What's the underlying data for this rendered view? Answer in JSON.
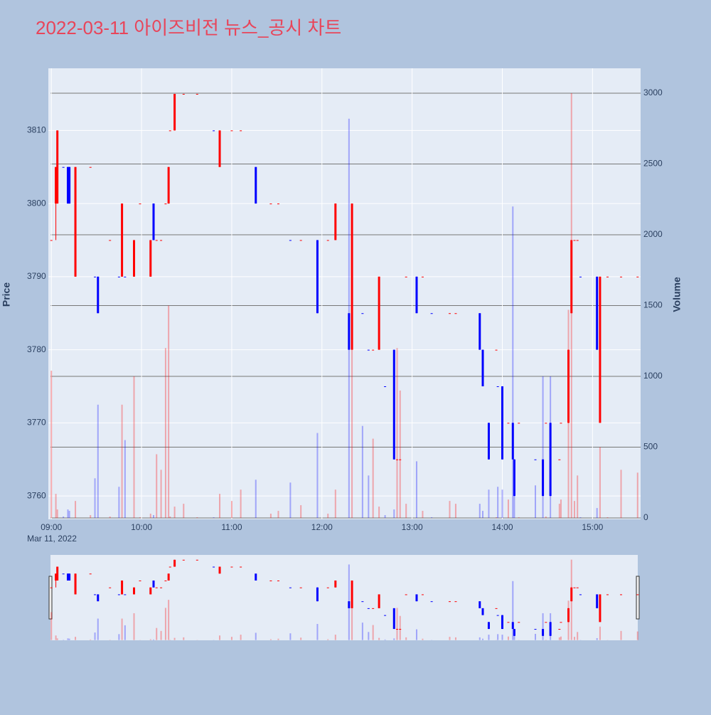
{
  "chart_data": {
    "type": "candlestick",
    "title": "2022-03-11 아이즈비전 뉴스_공시 차트",
    "ylabel": "Price",
    "y2label": "Volume",
    "x_date": "Mar 11, 2022",
    "increasing_color": "#ff0000",
    "decreasing_color": "#0000ff",
    "x": [
      "09:00",
      "09:03",
      "09:04",
      "09:08",
      "09:11",
      "09:12",
      "09:16",
      "09:26",
      "09:29",
      "09:31",
      "09:39",
      "09:45",
      "09:47",
      "09:49",
      "09:55",
      "09:59",
      "10:06",
      "10:08",
      "10:10",
      "10:13",
      "10:16",
      "10:18",
      "10:19",
      "10:22",
      "10:28",
      "10:37",
      "10:48",
      "10:52",
      "11:00",
      "11:06",
      "11:16",
      "11:26",
      "11:31",
      "11:39",
      "11:46",
      "11:57",
      "12:04",
      "12:09",
      "12:18",
      "12:20",
      "12:27",
      "12:31",
      "12:34",
      "12:38",
      "12:42",
      "12:48",
      "12:50",
      "12:52",
      "12:56",
      "13:03",
      "13:07",
      "13:13",
      "13:25",
      "13:29",
      "13:45",
      "13:47",
      "13:51",
      "13:56",
      "13:57",
      "14:00",
      "14:04",
      "14:07",
      "14:08",
      "14:11",
      "14:22",
      "14:27",
      "14:29",
      "14:32",
      "14:38",
      "14:39",
      "14:44",
      "14:46",
      "14:48",
      "14:50",
      "14:52",
      "15:03",
      "15:05",
      "15:10",
      "15:19",
      "15:30"
    ],
    "open": [
      3795,
      3800,
      3800,
      3805,
      3805,
      3805,
      3790,
      3805,
      3790,
      3790,
      3795,
      3790,
      3790,
      3790,
      3790,
      3800,
      3790,
      3800,
      3795,
      3795,
      3800,
      3800,
      3810,
      3810,
      3815,
      3815,
      3810,
      3805,
      3810,
      3810,
      3805,
      3800,
      3800,
      3795,
      3795,
      3795,
      3795,
      3795,
      3785,
      3780,
      3785,
      3780,
      3780,
      3780,
      3775,
      3780,
      3765,
      3765,
      3790,
      3790,
      3790,
      3785,
      3785,
      3785,
      3785,
      3780,
      3770,
      3780,
      3775,
      3775,
      3770,
      3770,
      3765,
      3770,
      3765,
      3765,
      3770,
      3770,
      3765,
      3770,
      3770,
      3785,
      3795,
      3795,
      3790,
      3790,
      3770,
      3790,
      3790,
      3790
    ],
    "high": [
      3795,
      3805,
      3810,
      3805,
      3805,
      3805,
      3805,
      3805,
      3790,
      3790,
      3795,
      3790,
      3800,
      3790,
      3795,
      3800,
      3795,
      3800,
      3795,
      3795,
      3800,
      3805,
      3810,
      3815,
      3815,
      3815,
      3810,
      3810,
      3810,
      3810,
      3805,
      3800,
      3800,
      3795,
      3795,
      3795,
      3795,
      3800,
      3785,
      3800,
      3785,
      3780,
      3780,
      3790,
      3775,
      3780,
      3765,
      3765,
      3790,
      3790,
      3790,
      3785,
      3785,
      3785,
      3785,
      3780,
      3770,
      3780,
      3775,
      3775,
      3770,
      3770,
      3765,
      3770,
      3765,
      3765,
      3770,
      3770,
      3765,
      3770,
      3780,
      3795,
      3795,
      3795,
      3790,
      3790,
      3790,
      3790,
      3790,
      3790
    ],
    "low": [
      3795,
      3795,
      3800,
      3805,
      3800,
      3800,
      3790,
      3805,
      3790,
      3785,
      3795,
      3790,
      3790,
      3790,
      3790,
      3800,
      3790,
      3795,
      3795,
      3795,
      3800,
      3800,
      3810,
      3810,
      3815,
      3815,
      3810,
      3805,
      3810,
      3810,
      3800,
      3800,
      3800,
      3795,
      3795,
      3785,
      3795,
      3795,
      3780,
      3780,
      3785,
      3780,
      3780,
      3780,
      3775,
      3765,
      3765,
      3765,
      3790,
      3785,
      3790,
      3785,
      3785,
      3785,
      3780,
      3775,
      3765,
      3780,
      3775,
      3765,
      3770,
      3765,
      3760,
      3770,
      3765,
      3760,
      3770,
      3760,
      3765,
      3770,
      3770,
      3785,
      3795,
      3795,
      3790,
      3780,
      3770,
      3790,
      3790,
      3790
    ],
    "close": [
      3795,
      3805,
      3810,
      3805,
      3800,
      3800,
      3805,
      3805,
      3790,
      3785,
      3795,
      3790,
      3800,
      3790,
      3795,
      3800,
      3795,
      3795,
      3795,
      3795,
      3800,
      3805,
      3810,
      3815,
      3815,
      3815,
      3810,
      3810,
      3810,
      3810,
      3800,
      3800,
      3800,
      3795,
      3795,
      3785,
      3795,
      3800,
      3780,
      3800,
      3785,
      3780,
      3780,
      3790,
      3775,
      3765,
      3765,
      3765,
      3790,
      3785,
      3790,
      3785,
      3785,
      3785,
      3780,
      3775,
      3765,
      3780,
      3775,
      3765,
      3770,
      3765,
      3760,
      3770,
      3765,
      3760,
      3770,
      3760,
      3765,
      3770,
      3780,
      3795,
      3795,
      3795,
      3790,
      3780,
      3790,
      3790,
      3790,
      3790
    ],
    "volume": [
      1040,
      170,
      60,
      10,
      60,
      50,
      120,
      20,
      280,
      800,
      10,
      220,
      800,
      550,
      1000,
      5,
      30,
      20,
      450,
      340,
      1200,
      1500,
      10,
      80,
      100,
      5,
      5,
      170,
      120,
      200,
      270,
      30,
      50,
      250,
      90,
      600,
      30,
      200,
      2820,
      1200,
      650,
      300,
      560,
      80,
      20,
      60,
      1200,
      900,
      100,
      400,
      50,
      5,
      120,
      100,
      100,
      50,
      200,
      5,
      220,
      200,
      130,
      2200,
      400,
      5,
      230,
      1000,
      10,
      1000,
      100,
      130,
      1470,
      3000,
      120,
      300,
      5,
      70,
      500,
      5,
      340,
      320
    ],
    "xlim": [
      "08:58",
      "15:32"
    ],
    "xticks": [
      "09:00",
      "10:00",
      "11:00",
      "12:00",
      "13:00",
      "14:00",
      "15:00"
    ],
    "ylim": [
      3756.8,
      3818.5
    ],
    "yticks": [
      3760,
      3770,
      3780,
      3790,
      3800,
      3810
    ],
    "y2lim": [
      -10,
      3176
    ],
    "y2ticks": [
      0,
      500,
      1000,
      1500,
      2000,
      2500,
      3000
    ]
  }
}
